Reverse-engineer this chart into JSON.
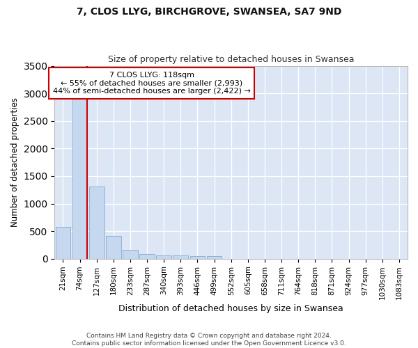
{
  "title_line1": "7, CLOS LLYG, BIRCHGROVE, SWANSEA, SA7 9ND",
  "title_line2": "Size of property relative to detached houses in Swansea",
  "xlabel": "Distribution of detached houses by size in Swansea",
  "ylabel": "Number of detached properties",
  "categories": [
    "21sqm",
    "74sqm",
    "127sqm",
    "180sqm",
    "233sqm",
    "287sqm",
    "340sqm",
    "393sqm",
    "446sqm",
    "499sqm",
    "552sqm",
    "605sqm",
    "658sqm",
    "711sqm",
    "764sqm",
    "818sqm",
    "871sqm",
    "924sqm",
    "977sqm",
    "1030sqm",
    "1083sqm"
  ],
  "values": [
    575,
    2900,
    1310,
    415,
    165,
    80,
    55,
    55,
    50,
    50,
    0,
    0,
    0,
    0,
    0,
    0,
    0,
    0,
    0,
    0,
    0
  ],
  "bar_color": "#c5d8f0",
  "bar_edge_color": "#88aacc",
  "property_line_color": "#cc0000",
  "annotation_text": "7 CLOS LLYG: 118sqm\n← 55% of detached houses are smaller (2,993)\n44% of semi-detached houses are larger (2,422) →",
  "annotation_box_color": "#ffffff",
  "annotation_box_edge_color": "#cc0000",
  "ylim": [
    0,
    3500
  ],
  "yticks": [
    0,
    500,
    1000,
    1500,
    2000,
    2500,
    3000,
    3500
  ],
  "background_color": "#dce6f5",
  "grid_color": "#ffffff",
  "fig_background": "#ffffff",
  "footnote": "Contains HM Land Registry data © Crown copyright and database right 2024.\nContains public sector information licensed under the Open Government Licence v3.0."
}
